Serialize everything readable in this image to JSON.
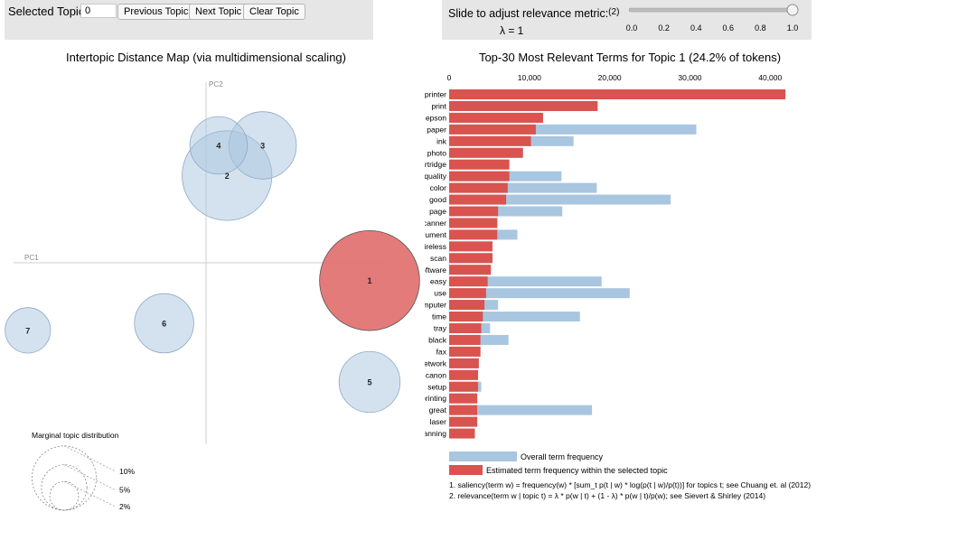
{
  "controls": {
    "selected_topic_label": "Selected Topic:",
    "selected_topic_value": "0",
    "prev_label": "Previous Topic",
    "next_label": "Next Topic",
    "clear_label": "Clear Topic",
    "slider_label": "Slide to adjust relevance metric:",
    "slider_note": "(2)",
    "lambda_text": "λ = 1",
    "slider_ticks": [
      "0.0",
      "0.2",
      "0.4",
      "0.6",
      "0.8",
      "1.0"
    ],
    "lambda_value": 1.0
  },
  "chart_data": [
    {
      "type": "scatter",
      "title": "Intertopic Distance Map (via multidimensional scaling)",
      "xlabel": "PC1",
      "ylabel": "PC2",
      "xlim": [
        -1,
        1
      ],
      "ylim": [
        -1,
        1
      ],
      "topics": [
        {
          "id": "1",
          "pc1": 0.78,
          "pc2": -0.1,
          "share_pct": 24.2,
          "selected": true
        },
        {
          "id": "2",
          "pc1": 0.1,
          "pc2": 0.49,
          "share_pct": 19.5,
          "selected": false
        },
        {
          "id": "3",
          "pc1": 0.27,
          "pc2": 0.66,
          "share_pct": 11.0,
          "selected": false
        },
        {
          "id": "4",
          "pc1": 0.06,
          "pc2": 0.66,
          "share_pct": 8.0,
          "selected": false
        },
        {
          "id": "5",
          "pc1": 0.78,
          "pc2": -0.67,
          "share_pct": 9.0,
          "selected": false
        },
        {
          "id": "6",
          "pc1": -0.2,
          "pc2": -0.34,
          "share_pct": 8.5,
          "selected": false
        },
        {
          "id": "7",
          "pc1": -0.85,
          "pc2": -0.38,
          "share_pct": 5.0,
          "selected": false
        }
      ],
      "marginal_legend": {
        "title": "Marginal topic distribution",
        "levels": [
          {
            "label": "2%",
            "pct": 2
          },
          {
            "label": "5%",
            "pct": 5
          },
          {
            "label": "10%",
            "pct": 10
          }
        ]
      }
    },
    {
      "type": "bar",
      "title": "Top-30 Most Relevant Terms for Topic 1 (24.2% of tokens)",
      "orientation": "horizontal",
      "xlim": [
        0,
        42000
      ],
      "xticks": [
        "0",
        "10,000",
        "20,000",
        "30,000",
        "40,000"
      ],
      "xtick_values": [
        0,
        10000,
        20000,
        30000,
        40000
      ],
      "categories": [
        "printer",
        "print",
        "epson",
        "paper",
        "ink",
        "photo",
        "cartridge",
        "quality",
        "color",
        "good",
        "page",
        "scanner",
        "document",
        "wireless",
        "scan",
        "software",
        "easy",
        "use",
        "computer",
        "time",
        "tray",
        "black",
        "fax",
        "network",
        "canon",
        "setup",
        "printing",
        "great",
        "laser",
        "scanning"
      ],
      "series": [
        {
          "name": "Overall term frequency",
          "color": "#a9c6e0",
          "values": [
            41900,
            18500,
            11700,
            30800,
            15500,
            9200,
            7500,
            14000,
            18400,
            27600,
            14100,
            6000,
            8500,
            5400,
            5400,
            5200,
            19000,
            22500,
            6100,
            16300,
            5100,
            7400,
            3900,
            3700,
            3600,
            4000,
            3500,
            17800,
            3500,
            3200
          ]
        },
        {
          "name": "Estimated term frequency within the selected topic",
          "color": "#d9534f",
          "values": [
            41900,
            18500,
            11700,
            10800,
            10200,
            9200,
            7500,
            7500,
            7300,
            7100,
            6100,
            6000,
            6000,
            5400,
            5400,
            5200,
            4800,
            4600,
            4400,
            4200,
            4000,
            3900,
            3900,
            3700,
            3600,
            3600,
            3500,
            3500,
            3500,
            3200
          ]
        }
      ],
      "legend": {
        "overall": "Overall term frequency",
        "estimated": "Estimated term frequency within the selected topic"
      },
      "footnotes": [
        "1. saliency(term w) = frequency(w) * [sum_t p(t | w) * log(p(t | w)/p(t))] for topics t; see Chuang et. al (2012)",
        "2. relevance(term w | topic t) = λ * p(w | t) + (1 - λ) * p(w | t)/p(w); see Sievert & Shirley (2014)"
      ]
    }
  ]
}
